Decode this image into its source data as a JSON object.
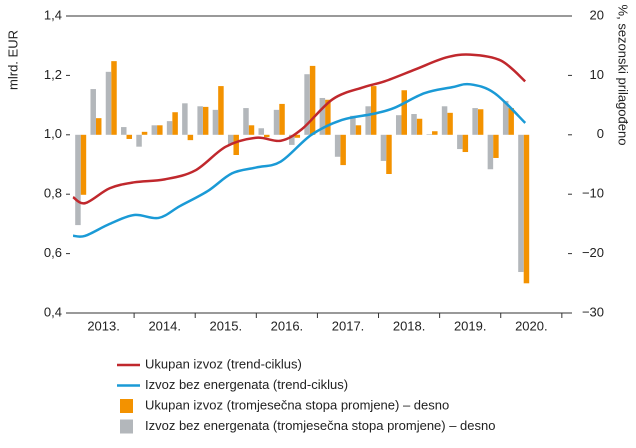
{
  "chart_data": {
    "type": "bar-line",
    "ylabel": "mlrd. EUR",
    "y2label": "%, sezonski prilagođeno",
    "xlim": [
      2012.95,
      2021.1
    ],
    "xticks": [
      {
        "value": 2013.5,
        "label": "2013."
      },
      {
        "value": 2014.5,
        "label": "2014."
      },
      {
        "value": 2015.5,
        "label": "2015."
      },
      {
        "value": 2016.5,
        "label": "2016."
      },
      {
        "value": 2017.5,
        "label": "2017."
      },
      {
        "value": 2018.5,
        "label": "2018."
      },
      {
        "value": 2019.5,
        "label": "2019."
      },
      {
        "value": 2020.5,
        "label": "2020."
      }
    ],
    "ylim": [
      0.4,
      1.4
    ],
    "yticks": [
      {
        "value": 0.4,
        "label": "0,4"
      },
      {
        "value": 0.6,
        "label": "0,6"
      },
      {
        "value": 0.8,
        "label": "0,8"
      },
      {
        "value": 1.0,
        "label": "1,0"
      },
      {
        "value": 1.2,
        "label": "1,2"
      },
      {
        "value": 1.4,
        "label": "1,4"
      }
    ],
    "y2lim": [
      -30,
      20
    ],
    "y2ticks": [
      {
        "value": -30,
        "label": "−30"
      },
      {
        "value": -20,
        "label": "−20"
      },
      {
        "value": -10,
        "label": "−10"
      },
      0,
      10,
      20
    ],
    "x": [
      2013.125,
      2013.375,
      2013.625,
      2013.875,
      2014.125,
      2014.375,
      2014.625,
      2014.875,
      2015.125,
      2015.375,
      2015.625,
      2015.875,
      2016.125,
      2016.375,
      2016.625,
      2016.875,
      2017.125,
      2017.375,
      2017.625,
      2017.875,
      2018.125,
      2018.375,
      2018.625,
      2018.875,
      2019.125,
      2019.375,
      2019.625,
      2019.875,
      2020.125,
      2020.375
    ],
    "series": [
      {
        "name": "Ukupan izvoz (trend-ciklus)",
        "kind": "line",
        "color": "#c0282d",
        "x": [
          2013.0,
          2013.2,
          2013.6,
          2014.0,
          2014.5,
          2015.0,
          2015.5,
          2016.0,
          2016.4,
          2016.75,
          2017.25,
          2017.75,
          2018.1,
          2018.6,
          2019.1,
          2019.5,
          2020.0,
          2020.4
        ],
        "values": [
          0.79,
          0.77,
          0.82,
          0.84,
          0.85,
          0.88,
          0.96,
          0.99,
          0.98,
          1.02,
          1.12,
          1.16,
          1.18,
          1.22,
          1.26,
          1.27,
          1.25,
          1.18
        ]
      },
      {
        "name": "Izvoz bez energenata (trend-ciklus)",
        "kind": "line",
        "color": "#1a9ad6",
        "x": [
          2013.0,
          2013.2,
          2013.6,
          2014.0,
          2014.4,
          2014.75,
          2015.2,
          2015.6,
          2016.0,
          2016.4,
          2016.9,
          2017.4,
          2017.9,
          2018.25,
          2018.75,
          2019.2,
          2019.5,
          2019.9,
          2020.4
        ],
        "values": [
          0.66,
          0.66,
          0.7,
          0.73,
          0.72,
          0.76,
          0.81,
          0.87,
          0.89,
          0.91,
          1.0,
          1.05,
          1.07,
          1.09,
          1.14,
          1.16,
          1.17,
          1.14,
          1.04
        ]
      },
      {
        "name": "Ukupan izvoz (tromjesečna stopa promjene) – desno",
        "kind": "bar",
        "axis": "y2",
        "color": "#f39200",
        "values": [
          -10.1,
          2.8,
          12.4,
          -0.7,
          0.5,
          1.6,
          3.8,
          -0.9,
          4.7,
          8.2,
          -3.4,
          1.6,
          -0.4,
          5.2,
          -0.5,
          11.6,
          5.9,
          -5.1,
          1.6,
          8.2,
          -6.6,
          7.5,
          2.7,
          0.6,
          3.7,
          -2.9,
          4.3,
          -3.9,
          4.5,
          -25.0
        ]
      },
      {
        "name": "Izvoz bez energenata (tromjesečna stopa promjene) – desno",
        "kind": "bar",
        "axis": "y2",
        "color": "#b3b7bb",
        "values": [
          -15.2,
          7.7,
          10.6,
          1.3,
          -2.0,
          1.6,
          2.3,
          5.3,
          4.8,
          4.2,
          -1.7,
          4.5,
          1.1,
          4.2,
          -1.7,
          10.2,
          6.2,
          -3.7,
          3.2,
          4.8,
          -4.4,
          3.3,
          3.5,
          0.1,
          4.8,
          -2.4,
          4.5,
          -5.8,
          5.7,
          -23.1
        ]
      }
    ]
  }
}
